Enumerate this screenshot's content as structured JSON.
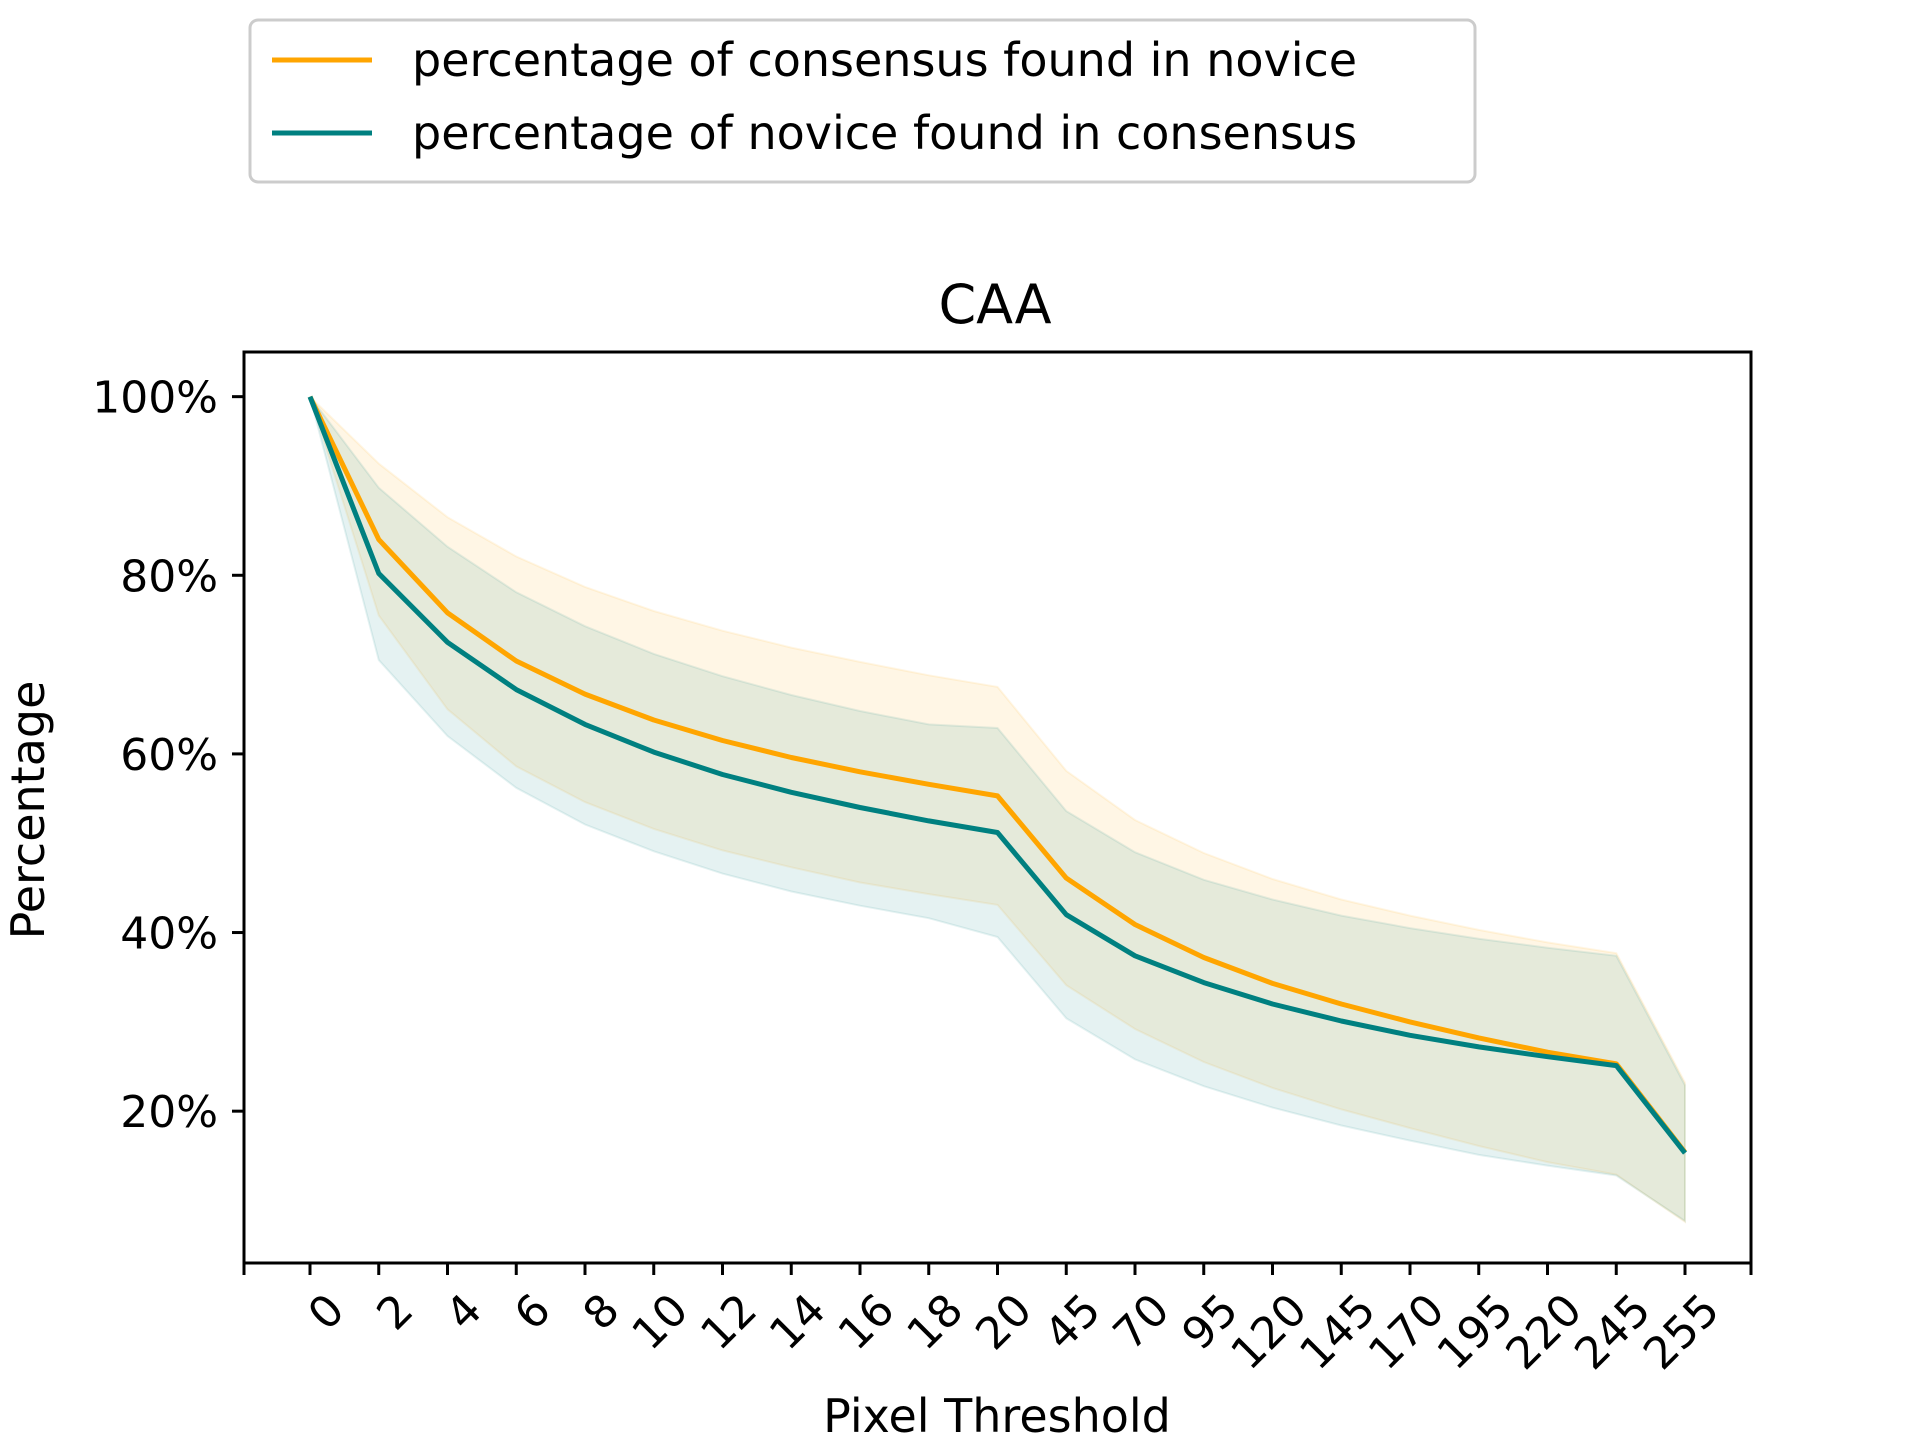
{
  "chart_data": {
    "type": "line",
    "title": "CAA",
    "xlabel": "Pixel Threshold",
    "ylabel": "Percentage",
    "categories": [
      "0",
      "2",
      "4",
      "6",
      "8",
      "10",
      "12",
      "14",
      "16",
      "18",
      "20",
      "45",
      "70",
      "95",
      "120",
      "145",
      "170",
      "195",
      "220",
      "245",
      "255"
    ],
    "ylim": [
      3,
      105
    ],
    "y_ticks": [
      {
        "value": 20,
        "label": "20%"
      },
      {
        "value": 40,
        "label": "40%"
      },
      {
        "value": 60,
        "label": "60%"
      },
      {
        "value": 80,
        "label": "80%"
      },
      {
        "value": 100,
        "label": "100%"
      }
    ],
    "grid": false,
    "legend_position": "top-left (above plot)",
    "series": [
      {
        "name": "percentage of consensus found in novice",
        "color": "#FFA500",
        "values": [
          100,
          84,
          75.8,
          70.4,
          66.7,
          63.8,
          61.5,
          59.6,
          58.0,
          56.6,
          55.3,
          46.1,
          40.9,
          37.2,
          34.3,
          32.0,
          30.0,
          28.2,
          26.6,
          25.3,
          15.4
        ],
        "band_upper": [
          100,
          92.5,
          86.5,
          82.1,
          78.7,
          76.0,
          73.8,
          71.9,
          70.3,
          68.8,
          67.5,
          58.1,
          52.6,
          48.9,
          46.0,
          43.7,
          41.9,
          40.3,
          38.9,
          37.7,
          23.2
        ],
        "band_lower": [
          100,
          75.5,
          65.0,
          58.6,
          54.6,
          51.6,
          49.2,
          47.3,
          45.6,
          44.3,
          43.1,
          34.1,
          29.2,
          25.5,
          22.6,
          20.2,
          18.1,
          16.1,
          14.3,
          12.9,
          7.6
        ]
      },
      {
        "name": "percentage of novice found in consensus",
        "color": "#008080",
        "values": [
          100,
          80.2,
          72.5,
          67.2,
          63.3,
          60.2,
          57.7,
          55.7,
          54.0,
          52.5,
          51.2,
          42.0,
          37.4,
          34.4,
          32.0,
          30.1,
          28.5,
          27.2,
          26.1,
          25.1,
          15.3
        ],
        "band_upper": [
          100,
          89.8,
          83.2,
          78.1,
          74.3,
          71.2,
          68.7,
          66.6,
          64.8,
          63.3,
          62.9,
          53.6,
          49.0,
          45.9,
          43.7,
          41.9,
          40.5,
          39.3,
          38.3,
          37.4,
          22.9
        ],
        "band_lower": [
          100,
          70.5,
          62.0,
          56.2,
          52.1,
          49.1,
          46.6,
          44.6,
          43.0,
          41.6,
          39.5,
          30.4,
          25.8,
          22.8,
          20.4,
          18.4,
          16.7,
          15.1,
          13.9,
          12.8,
          7.7
        ]
      }
    ]
  }
}
